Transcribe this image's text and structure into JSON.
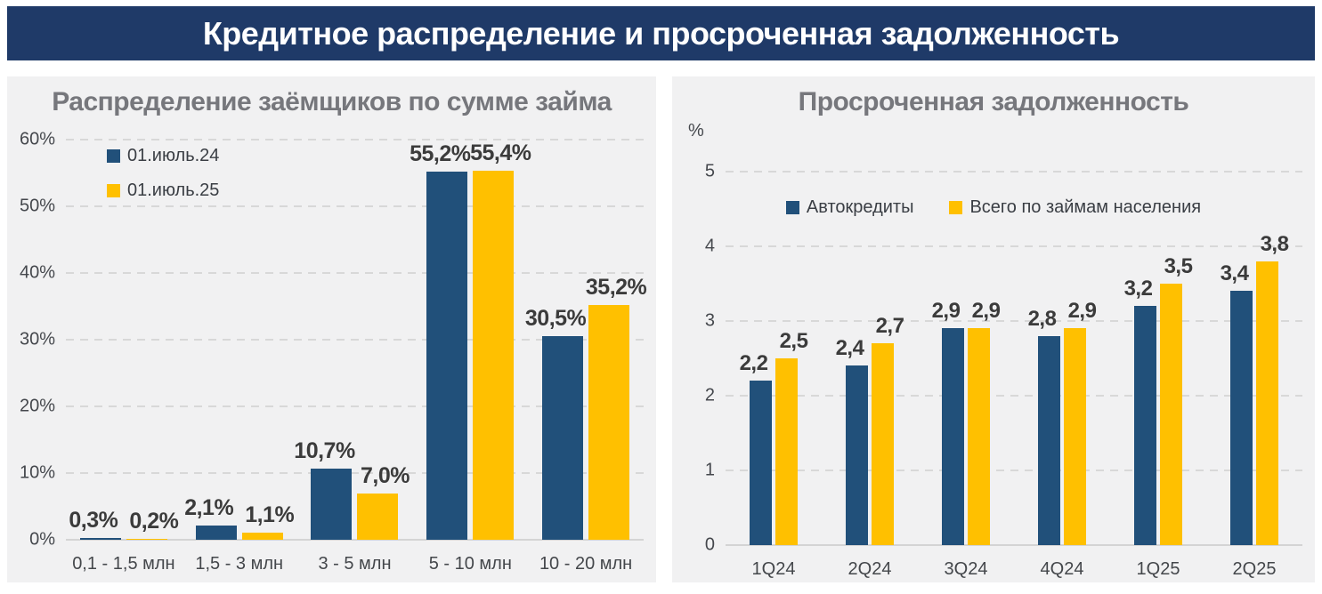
{
  "header": {
    "title": "Кредитное распределение и просроченная задолженность"
  },
  "colors": {
    "navy": "#21507A",
    "yellow": "#FFC000",
    "header_bg": "#1F3A68",
    "panel_bg": "#F1F1F2",
    "grid": "#D8D8D8",
    "title_gray": "#76777C",
    "label_dark": "#3B3B3B"
  },
  "chart_data": [
    {
      "type": "bar",
      "title": "Распределение заёмщиков по сумме займа",
      "categories": [
        "0,1 - 1,5 млн",
        "1,5 - 3 млн",
        "3 - 5 млн",
        "5 - 10 млн",
        "10 - 20 млн"
      ],
      "series": [
        {
          "name": "01.июль.24",
          "color_key": "navy",
          "values": [
            0.3,
            2.1,
            10.7,
            55.2,
            30.5
          ]
        },
        {
          "name": "01.июль.25",
          "color_key": "yellow",
          "values": [
            0.2,
            1.1,
            7.0,
            55.4,
            35.2
          ]
        }
      ],
      "value_labels": [
        [
          "0,3%",
          "2,1%",
          "10,7%",
          "55,2%",
          "30,5%"
        ],
        [
          "0,2%",
          "1,1%",
          "7,0%",
          "55,4%",
          "35,2%"
        ]
      ],
      "yticks": [
        "0%",
        "10%",
        "20%",
        "30%",
        "40%",
        "50%",
        "60%"
      ],
      "ylim": [
        0,
        60
      ],
      "grid": "dashed",
      "legend_position": "top-left-vertical"
    },
    {
      "type": "bar",
      "title": "Просроченная задолженность",
      "axis_unit": "%",
      "categories": [
        "1Q24",
        "2Q24",
        "3Q24",
        "4Q24",
        "1Q25",
        "2Q25"
      ],
      "series": [
        {
          "name": "Автокредиты",
          "color_key": "navy",
          "values": [
            2.2,
            2.4,
            2.9,
            2.8,
            3.2,
            3.4
          ]
        },
        {
          "name": "Всего по займам населения",
          "color_key": "yellow",
          "values": [
            2.5,
            2.7,
            2.9,
            2.9,
            3.5,
            3.8
          ]
        }
      ],
      "value_labels": [
        [
          "2,2",
          "2,4",
          "2,9",
          "2,8",
          "3,2",
          "3,4"
        ],
        [
          "2,5",
          "2,7",
          "2,9",
          "2,9",
          "3,5",
          "3,8"
        ]
      ],
      "yticks": [
        "0",
        "1",
        "2",
        "3",
        "4",
        "5"
      ],
      "ylim": [
        0,
        5
      ],
      "grid": "dashed",
      "legend_position": "top-center-horizontal"
    }
  ]
}
